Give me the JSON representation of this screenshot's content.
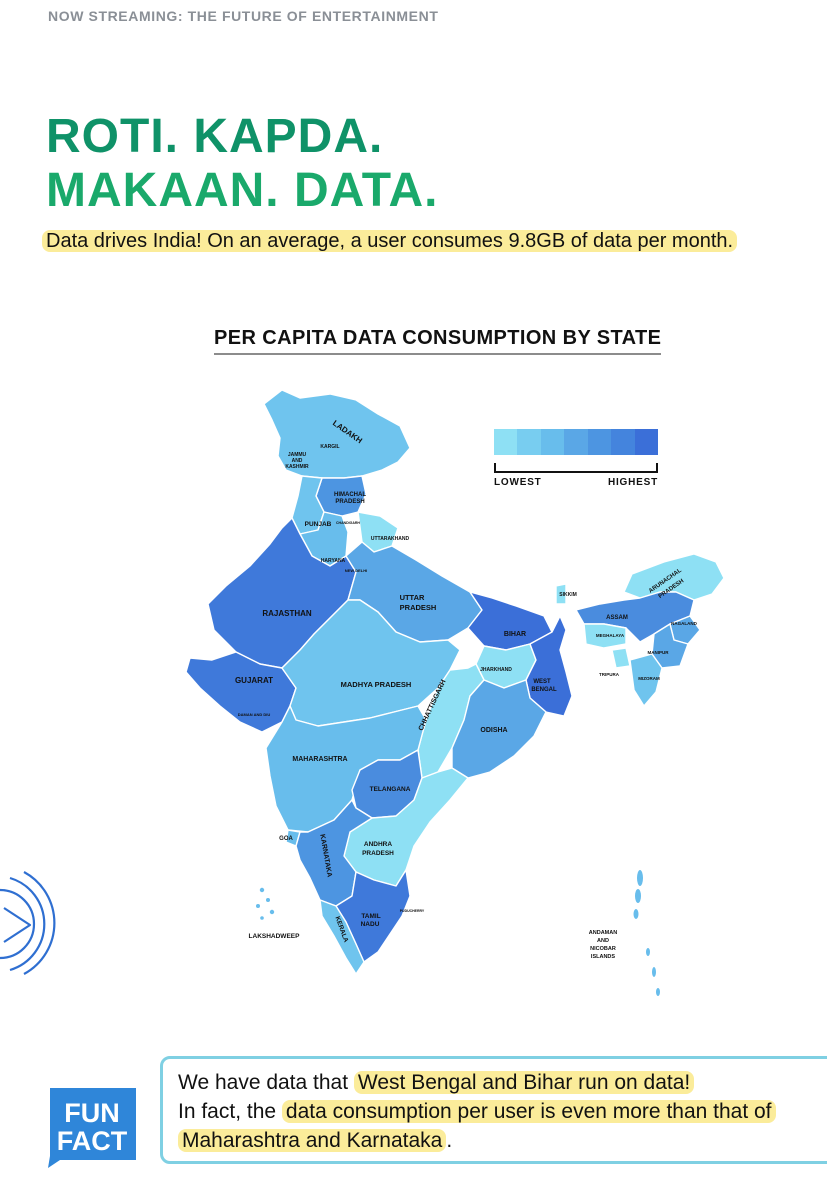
{
  "header": {
    "eyebrow": "NOW STREAMING: THE FUTURE OF ENTERTAINMENT"
  },
  "headline": {
    "line1": "ROTI. KAPDA.",
    "line2": "MAKAAN. DATA."
  },
  "subline": "Data drives India! On an average, a user consumes 9.8GB of data per month.",
  "map": {
    "title": "PER CAPITA DATA CONSUMPTION BY STATE",
    "legend": {
      "low_label": "LOWEST",
      "high_label": "HIGHEST",
      "colors": [
        "#8ee0f4",
        "#78cdf0",
        "#68bdec",
        "#5aa7e6",
        "#4d95e1",
        "#4484dd",
        "#3b6fd8"
      ]
    },
    "state_labels": {
      "ladakh": "LADAKH",
      "kargil": "KARGIL",
      "jammu_kashmir": [
        "JAMMU",
        "AND",
        "KASHMIR"
      ],
      "himachal": [
        "HIMACHAL",
        "PRADESH"
      ],
      "punjab": "PUNJAB",
      "chandigarh": "CHANDIGARH",
      "uttarakhand": "UTTARAKHAND",
      "haryana": "HARYANA",
      "new_delhi": "NEW DELHI",
      "rajasthan": "RAJASTHAN",
      "uttar_pradesh": [
        "UTTAR",
        "PRADESH"
      ],
      "bihar": "BIHAR",
      "sikkim": "SIKKIM",
      "arunachal": [
        "ARUNACHAL",
        "PRADESH"
      ],
      "assam": "ASSAM",
      "nagaland": "NAGALAND",
      "meghalaya": "MEGHALAYA",
      "manipur": "MANIPUR",
      "tripura": "TRIPURA",
      "mizoram": "MIZORAM",
      "jharkhand": "JHARKHAND",
      "west_bengal": [
        "WEST",
        "BENGAL"
      ],
      "gujarat": "GUJARAT",
      "madhya_pradesh": "MADHYA PRADESH",
      "chhattisgarh": "CHHATTISGARH",
      "odisha": "ODISHA",
      "daman_diu": "DAMAN AND DIU",
      "maharashtra": "MAHARASHTRA",
      "telangana": "TELANGANA",
      "goa": "GOA",
      "karnataka": "KARNATAKA",
      "andhra": [
        "ANDHRA",
        "PRADESH"
      ],
      "tamil_nadu": [
        "TAMIL",
        "NADU"
      ],
      "puducherry": "PUDUCHERRY",
      "kerala": "KERALA",
      "lakshadweep": "LAKSHADWEEP",
      "andaman": [
        "ANDAMAN",
        "AND",
        "NICOBAR",
        "ISLANDS"
      ]
    }
  },
  "fun_fact": {
    "badge_line1": "FUN",
    "badge_line2": "FACT",
    "p1": "We have data that ",
    "h1": "West Bengal and Bihar run on data!",
    "p2": "In fact, the ",
    "h2": "data consumption per user is even more than that of Maharashtra and Karnataka",
    "p3": "."
  }
}
